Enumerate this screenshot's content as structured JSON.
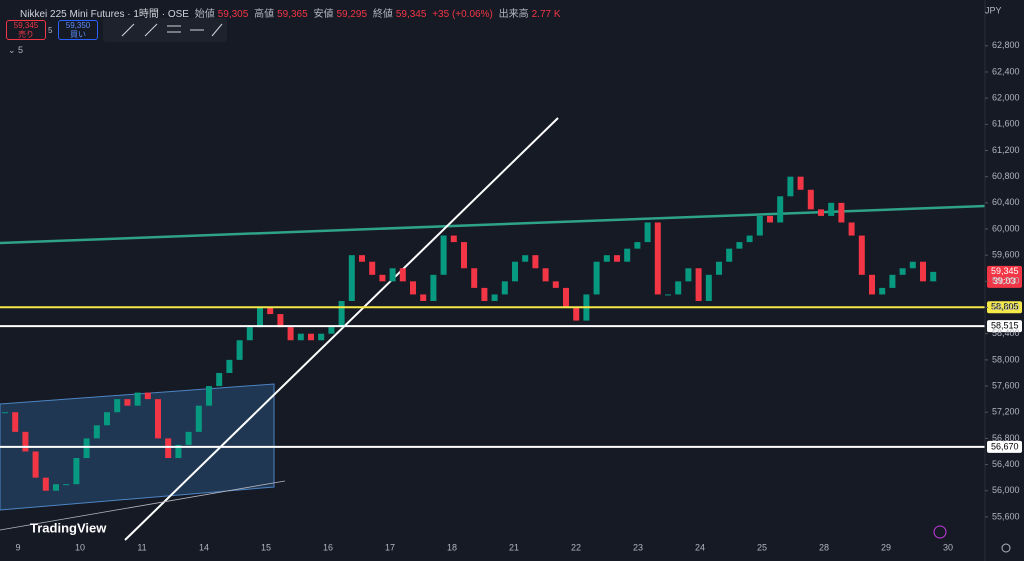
{
  "header": {
    "symbol": "Nikkei 225 Mini Futures · 1時間 · OSE",
    "open_label": "始値",
    "open": "59,305",
    "high_label": "高値",
    "high": "59,365",
    "low_label": "安値",
    "low": "59,295",
    "close_label": "終値",
    "close": "59,345",
    "change": "+35 (+0.06%)",
    "volume_label": "出来高",
    "volume": "2.77 K"
  },
  "trade": {
    "sell_price": "59,345",
    "sell_label": "売り",
    "spread": "5",
    "buy_price": "59,350",
    "buy_label": "買い"
  },
  "indicators_count": "5",
  "currency": "JPY",
  "logo": "TradingView",
  "countdown": "39:03",
  "chart_data": {
    "type": "candlestick",
    "ylim": [
      55400,
      63500
    ],
    "yticks": [
      {
        "value": 62800,
        "label": "62,800"
      },
      {
        "value": 62400,
        "label": "62,400"
      },
      {
        "value": 62000,
        "label": "62,000"
      },
      {
        "value": 61600,
        "label": "61,600"
      },
      {
        "value": 61200,
        "label": "61,200"
      },
      {
        "value": 60800,
        "label": "60,800"
      },
      {
        "value": 60400,
        "label": "60,400"
      },
      {
        "value": 60000,
        "label": "60,000"
      },
      {
        "value": 59600,
        "label": "59,600"
      },
      {
        "value": 59200,
        "label": "59,200"
      },
      {
        "value": 58800,
        "label": "58,800"
      },
      {
        "value": 58400,
        "label": "58,400"
      },
      {
        "value": 58000,
        "label": "58,000"
      },
      {
        "value": 57600,
        "label": "57,600"
      },
      {
        "value": 57200,
        "label": "57,200"
      },
      {
        "value": 56800,
        "label": "56,800"
      },
      {
        "value": 56400,
        "label": "56,400"
      },
      {
        "value": 56000,
        "label": "56,000"
      },
      {
        "value": 55600,
        "label": "55,600"
      }
    ],
    "dates": [
      "9",
      "10",
      "11",
      "14",
      "15",
      "16",
      "17",
      "18",
      "21",
      "22",
      "23",
      "24",
      "25",
      "28",
      "29",
      "30"
    ],
    "closes": [
      57200,
      56900,
      56600,
      56200,
      56000,
      56100,
      56100,
      56500,
      56800,
      57000,
      57200,
      57400,
      57300,
      57500,
      57400,
      56800,
      56500,
      56700,
      56900,
      57300,
      57600,
      57800,
      58000,
      58300,
      58500,
      58800,
      58700,
      58500,
      58300,
      58400,
      58300,
      58400,
      58500,
      58900,
      59600,
      59500,
      59300,
      59200,
      59400,
      59200,
      59000,
      58900,
      59300,
      59900,
      59800,
      59400,
      59100,
      58900,
      59000,
      59200,
      59500,
      59600,
      59400,
      59200,
      59100,
      58800,
      58600,
      59000,
      59500,
      59600,
      59500,
      59700,
      59800,
      60100,
      59000,
      59000,
      59200,
      59400,
      58900,
      59300,
      59500,
      59700,
      59800,
      59900,
      60200,
      60100,
      60500,
      60800,
      60600,
      60300,
      60200,
      60400,
      60100,
      59900,
      59300,
      59000,
      59100,
      59300,
      59400,
      59500,
      59200,
      59345
    ],
    "up_color": "#089981",
    "down_color": "#f23645",
    "levels": [
      {
        "value": 59345,
        "label": "59,345",
        "color": "#f23645"
      },
      {
        "value": 58805,
        "label": "58,805",
        "color": "#f5e94a"
      },
      {
        "value": 58515,
        "label": "58,515",
        "color": "#ffffff"
      },
      {
        "value": 56670,
        "label": "56,670",
        "color": "#ffffff"
      }
    ]
  }
}
